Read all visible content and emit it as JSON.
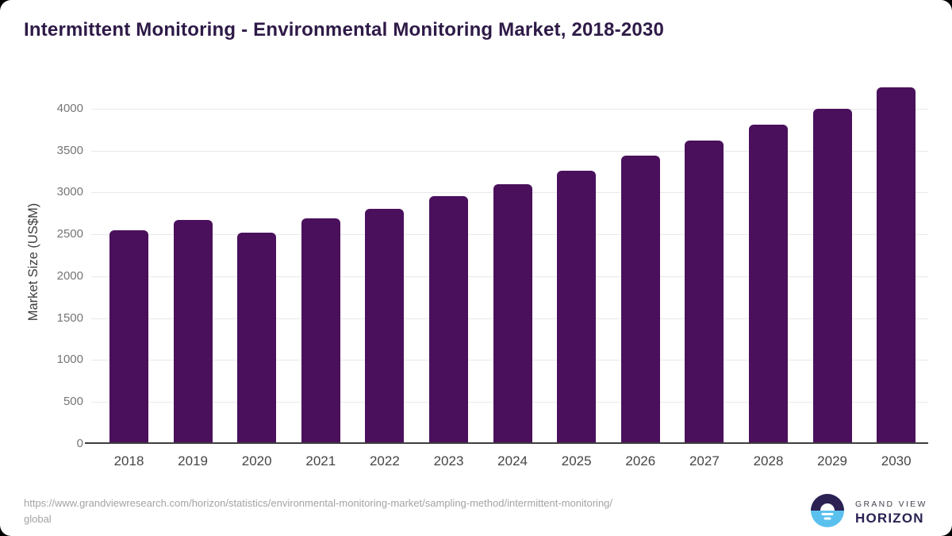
{
  "header": {
    "title": "Intermittent Monitoring - Environmental Monitoring Market, 2018-2030",
    "title_color": "#2e1a47"
  },
  "chart_data": {
    "type": "bar",
    "title": "Intermittent Monitoring - Environmental Monitoring Market, 2018-2030",
    "categories": [
      "2018",
      "2019",
      "2020",
      "2021",
      "2022",
      "2023",
      "2024",
      "2025",
      "2026",
      "2027",
      "2028",
      "2029",
      "2030"
    ],
    "values": [
      2530,
      2655,
      2505,
      2675,
      2790,
      2935,
      3080,
      3240,
      3425,
      3600,
      3790,
      3985,
      4235
    ],
    "xlabel": "",
    "ylabel": "Market Size (US$M)",
    "ylim": [
      0,
      4350
    ],
    "yticks": [
      0,
      500,
      1000,
      1500,
      2000,
      2500,
      3000,
      3500,
      4000
    ],
    "grid": true,
    "legend": false,
    "bar_color": "#4a105c",
    "gridline_color": "#e9e9e9",
    "axis_line_color": "#3f3f3f",
    "ytick_label_color": "#757575",
    "xtick_label_color": "#454545"
  },
  "footer": {
    "source_line1": "https://www.grandviewresearch.com/horizon/statistics/environmental-monitoring-market/sampling-method/intermittent-monitoring/",
    "source_line2": "global",
    "logo": {
      "brand_line1": "GRAND VIEW",
      "brand_line2": "HORIZON",
      "icon": "horizon-sun-over-water",
      "dark_color": "#2b2153",
      "blue_color": "#5ac1ee"
    }
  }
}
